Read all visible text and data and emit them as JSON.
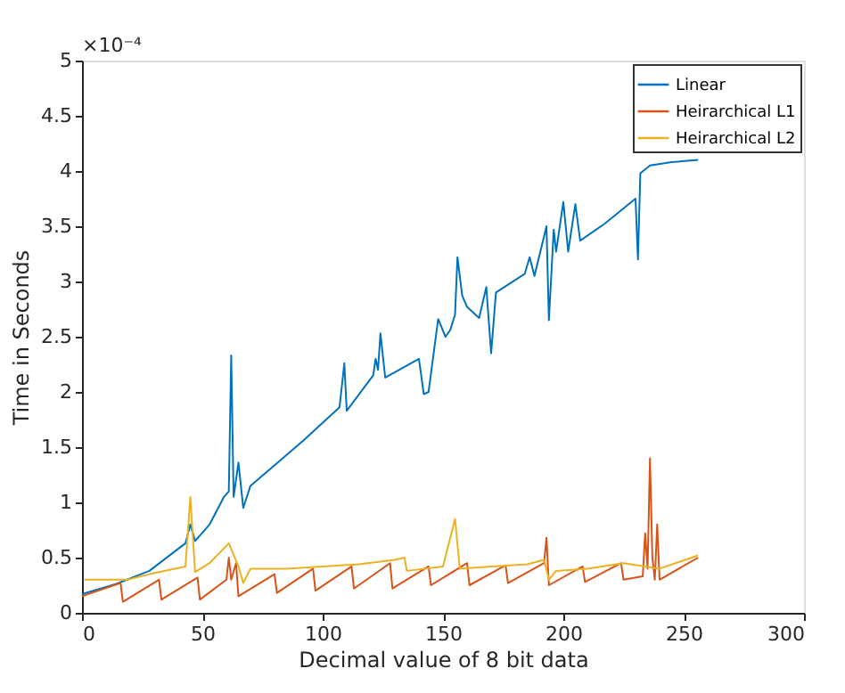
{
  "chart_data": {
    "type": "line",
    "xlabel": "Decimal value of 8 bit data",
    "ylabel": "Time in Seconds",
    "annotations": [
      "×10⁻⁴"
    ],
    "xlim": [
      0,
      300
    ],
    "xticks": [
      0,
      50,
      100,
      150,
      200,
      250,
      300
    ],
    "ylim": [
      0,
      5
    ],
    "yticks": [
      0,
      0.5,
      1,
      1.5,
      2,
      2.5,
      3,
      3.5,
      4,
      4.5,
      5
    ],
    "grid": false,
    "legend": "top right",
    "marker": "none",
    "line_style": "solid",
    "series": [
      {
        "name": "Linear",
        "color": "#0072bd",
        "x": [
          0,
          14,
          28,
          43,
          45,
          47,
          53,
          59,
          61,
          62,
          63,
          65,
          67,
          70,
          92,
          107,
          109,
          110,
          121,
          122,
          123,
          124,
          126,
          140,
          142,
          144,
          148,
          151,
          153,
          155,
          156,
          158,
          160,
          165,
          168,
          170,
          172,
          184,
          186,
          188,
          193,
          194,
          196,
          197,
          200,
          202,
          205,
          207,
          217,
          230,
          231,
          232,
          236,
          245,
          256
        ],
        "values": [
          0.17,
          0.26,
          0.38,
          0.63,
          0.8,
          0.65,
          0.8,
          1.05,
          1.1,
          2.33,
          1.05,
          1.36,
          0.95,
          1.15,
          1.56,
          1.86,
          2.26,
          1.83,
          2.15,
          2.3,
          2.2,
          2.53,
          2.13,
          2.3,
          1.98,
          2.0,
          2.66,
          2.5,
          2.56,
          2.7,
          3.22,
          2.87,
          2.77,
          2.67,
          2.95,
          2.35,
          2.9,
          3.07,
          3.22,
          3.05,
          3.5,
          2.65,
          3.47,
          3.27,
          3.72,
          3.27,
          3.7,
          3.37,
          3.52,
          3.75,
          3.2,
          3.98,
          4.05,
          4.08,
          4.1
        ]
      },
      {
        "name": "Heirarchical L1",
        "color": "#d95319",
        "x": [
          0,
          16,
          17,
          32,
          33,
          48,
          49,
          60,
          61,
          62,
          64,
          65,
          80,
          81,
          96,
          97,
          112,
          113,
          128,
          129,
          144,
          145,
          160,
          161,
          176,
          177,
          192,
          193,
          194,
          208,
          209,
          224,
          225,
          233,
          234,
          235,
          236,
          237,
          238,
          239,
          240,
          256
        ],
        "values": [
          0.15,
          0.27,
          0.1,
          0.3,
          0.12,
          0.32,
          0.12,
          0.3,
          0.5,
          0.3,
          0.45,
          0.15,
          0.35,
          0.18,
          0.4,
          0.2,
          0.42,
          0.22,
          0.45,
          0.22,
          0.42,
          0.25,
          0.45,
          0.25,
          0.43,
          0.27,
          0.45,
          0.68,
          0.25,
          0.42,
          0.28,
          0.45,
          0.3,
          0.33,
          0.72,
          0.4,
          1.4,
          0.5,
          0.3,
          0.8,
          0.3,
          0.5
        ]
      },
      {
        "name": "Heirarchical L2",
        "color": "#edb120",
        "x": [
          1,
          19,
          28,
          43,
          45,
          47,
          53,
          61,
          65,
          67,
          70,
          85,
          100,
          115,
          130,
          134,
          135,
          150,
          155,
          157,
          170,
          185,
          192,
          194,
          197,
          210,
          225,
          240,
          256
        ],
        "values": [
          0.3,
          0.3,
          0.35,
          0.42,
          1.05,
          0.37,
          0.45,
          0.63,
          0.42,
          0.27,
          0.4,
          0.4,
          0.42,
          0.44,
          0.48,
          0.5,
          0.38,
          0.42,
          0.85,
          0.4,
          0.42,
          0.44,
          0.48,
          0.3,
          0.38,
          0.4,
          0.45,
          0.4,
          0.52
        ]
      }
    ]
  }
}
